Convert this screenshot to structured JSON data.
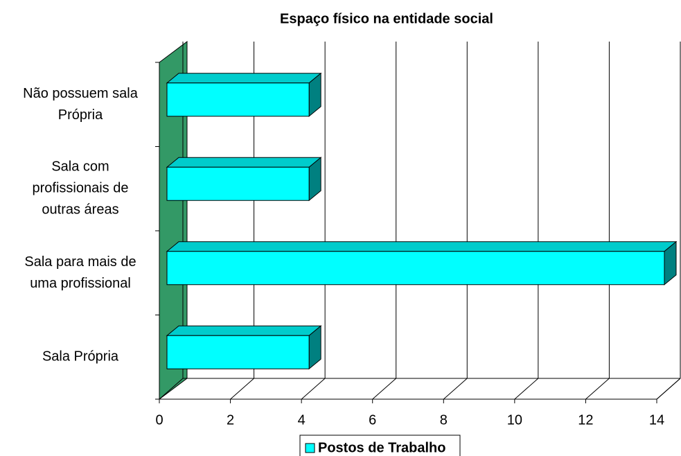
{
  "chart_data": {
    "type": "bar3d_horizontal",
    "title": "Espaço físico na entidade social",
    "categories": [
      "Sala Própria",
      "Sala para mais de uma profissional",
      "Sala com profissionais de outras áreas",
      "Não possuem sala Própria"
    ],
    "series": [
      {
        "name": "Postos de Trabalho",
        "color": "#00ffff",
        "values": [
          4,
          14,
          4,
          4
        ]
      }
    ],
    "xlim": [
      0,
      14
    ],
    "xticks": [
      0,
      2,
      4,
      6,
      8,
      10,
      12,
      14
    ],
    "grid": true,
    "legend": "bottom"
  }
}
